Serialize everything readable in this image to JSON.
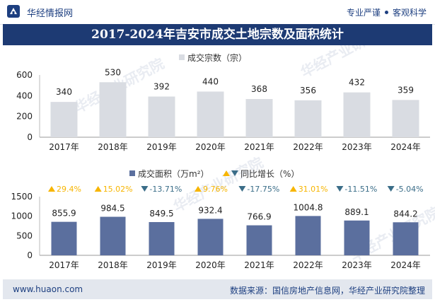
{
  "header": {
    "brand": "华经情报网",
    "slogan_left": "专业严谨",
    "slogan_right": "客观科学"
  },
  "title": "2017-2024年吉安市成交土地宗数及面积统计",
  "watermark": "华经产业研究院",
  "footer": {
    "website": "www.huaon.com",
    "source": "数据来源：国信房地产信息网，华经产业研究院整理"
  },
  "colors": {
    "bar_count": "#d9dce2",
    "bar_area": "#5b6f9e",
    "up": "#f7b500",
    "down": "#3a6d88",
    "header_bg": "#1d3a73"
  },
  "chart_data": [
    {
      "type": "bar",
      "categories": [
        "2017年",
        "2018年",
        "2019年",
        "2020年",
        "2021年",
        "2022年",
        "2023年",
        "2024年"
      ],
      "series": [
        {
          "name": "成交宗数（宗）",
          "values": [
            340,
            530,
            392,
            440,
            368,
            356,
            432,
            359
          ]
        }
      ],
      "ylim": [
        0,
        600
      ],
      "yticks": [
        0,
        200,
        400,
        600
      ],
      "legend": "top-center"
    },
    {
      "type": "bar",
      "categories": [
        "2017年",
        "2018年",
        "2019年",
        "2020年",
        "2021年",
        "2022年",
        "2023年",
        "2024年"
      ],
      "series": [
        {
          "name": "成交面积（万m²）",
          "values": [
            855.9,
            984.5,
            849.5,
            932.4,
            766.9,
            1004.8,
            889.1,
            844.2
          ]
        },
        {
          "name": "同比增长（%）",
          "values": [
            29.4,
            15.02,
            -13.71,
            9.76,
            -17.75,
            31.01,
            -11.51,
            -5.04
          ],
          "labels": [
            "29.4%",
            "15.02%",
            "-13.71%",
            "9.76%",
            "-17.75%",
            "31.01%",
            "-11.51%",
            "-5.04%"
          ]
        }
      ],
      "ylim": [
        0,
        1500
      ],
      "yticks": [
        0,
        500,
        1000,
        1500
      ],
      "legend": "top-center"
    }
  ]
}
